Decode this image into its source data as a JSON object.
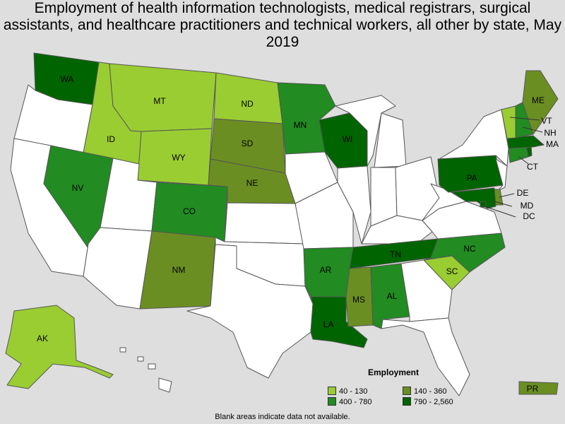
{
  "title": "Employment of health information technologists, medical registrars, surgical assistants, and healthcare practitioners and technical workers, all other by state, May 2019",
  "legend": {
    "title": "Employment",
    "ranges": [
      {
        "label": "40 - 130",
        "color": "#9acd32"
      },
      {
        "label": "140 - 360",
        "color": "#6b8e23"
      },
      {
        "label": "400 - 780",
        "color": "#228b22"
      },
      {
        "label": "790 - 2,560",
        "color": "#006400"
      }
    ]
  },
  "no_data_color": "#ffffff",
  "footnote": "Blank areas indicate data not available.",
  "states": [
    {
      "abbr": "WA",
      "range": 3
    },
    {
      "abbr": "OR",
      "range": null
    },
    {
      "abbr": "CA",
      "range": null
    },
    {
      "abbr": "ID",
      "range": 0
    },
    {
      "abbr": "NV",
      "range": 2
    },
    {
      "abbr": "MT",
      "range": 0
    },
    {
      "abbr": "WY",
      "range": 0
    },
    {
      "abbr": "UT",
      "range": null
    },
    {
      "abbr": "AZ",
      "range": null
    },
    {
      "abbr": "CO",
      "range": 2
    },
    {
      "abbr": "NM",
      "range": 1
    },
    {
      "abbr": "ND",
      "range": 0
    },
    {
      "abbr": "SD",
      "range": 1
    },
    {
      "abbr": "NE",
      "range": 1
    },
    {
      "abbr": "KS",
      "range": null
    },
    {
      "abbr": "OK",
      "range": null
    },
    {
      "abbr": "TX",
      "range": null
    },
    {
      "abbr": "MN",
      "range": 2
    },
    {
      "abbr": "IA",
      "range": null
    },
    {
      "abbr": "MO",
      "range": null
    },
    {
      "abbr": "AR",
      "range": 2
    },
    {
      "abbr": "LA",
      "range": 3
    },
    {
      "abbr": "WI",
      "range": 3
    },
    {
      "abbr": "IL",
      "range": null
    },
    {
      "abbr": "MI",
      "range": null
    },
    {
      "abbr": "IN",
      "range": null
    },
    {
      "abbr": "OH",
      "range": null
    },
    {
      "abbr": "KY",
      "range": null
    },
    {
      "abbr": "TN",
      "range": 3
    },
    {
      "abbr": "MS",
      "range": 1
    },
    {
      "abbr": "AL",
      "range": 2
    },
    {
      "abbr": "GA",
      "range": null
    },
    {
      "abbr": "FL",
      "range": null
    },
    {
      "abbr": "SC",
      "range": 0
    },
    {
      "abbr": "NC",
      "range": 2
    },
    {
      "abbr": "VA",
      "range": null
    },
    {
      "abbr": "WV",
      "range": null
    },
    {
      "abbr": "PA",
      "range": 3
    },
    {
      "abbr": "NY",
      "range": null
    },
    {
      "abbr": "NJ",
      "range": null
    },
    {
      "abbr": "DE",
      "range": 1
    },
    {
      "abbr": "MD",
      "range": 3
    },
    {
      "abbr": "DC",
      "range": 3
    },
    {
      "abbr": "CT",
      "range": 2
    },
    {
      "abbr": "RI",
      "range": 3
    },
    {
      "abbr": "MA",
      "range": 3
    },
    {
      "abbr": "VT",
      "range": 0
    },
    {
      "abbr": "NH",
      "range": 2
    },
    {
      "abbr": "ME",
      "range": 1
    },
    {
      "abbr": "AK",
      "range": 0
    },
    {
      "abbr": "HI",
      "range": null
    },
    {
      "abbr": "PR",
      "range": 1
    }
  ]
}
